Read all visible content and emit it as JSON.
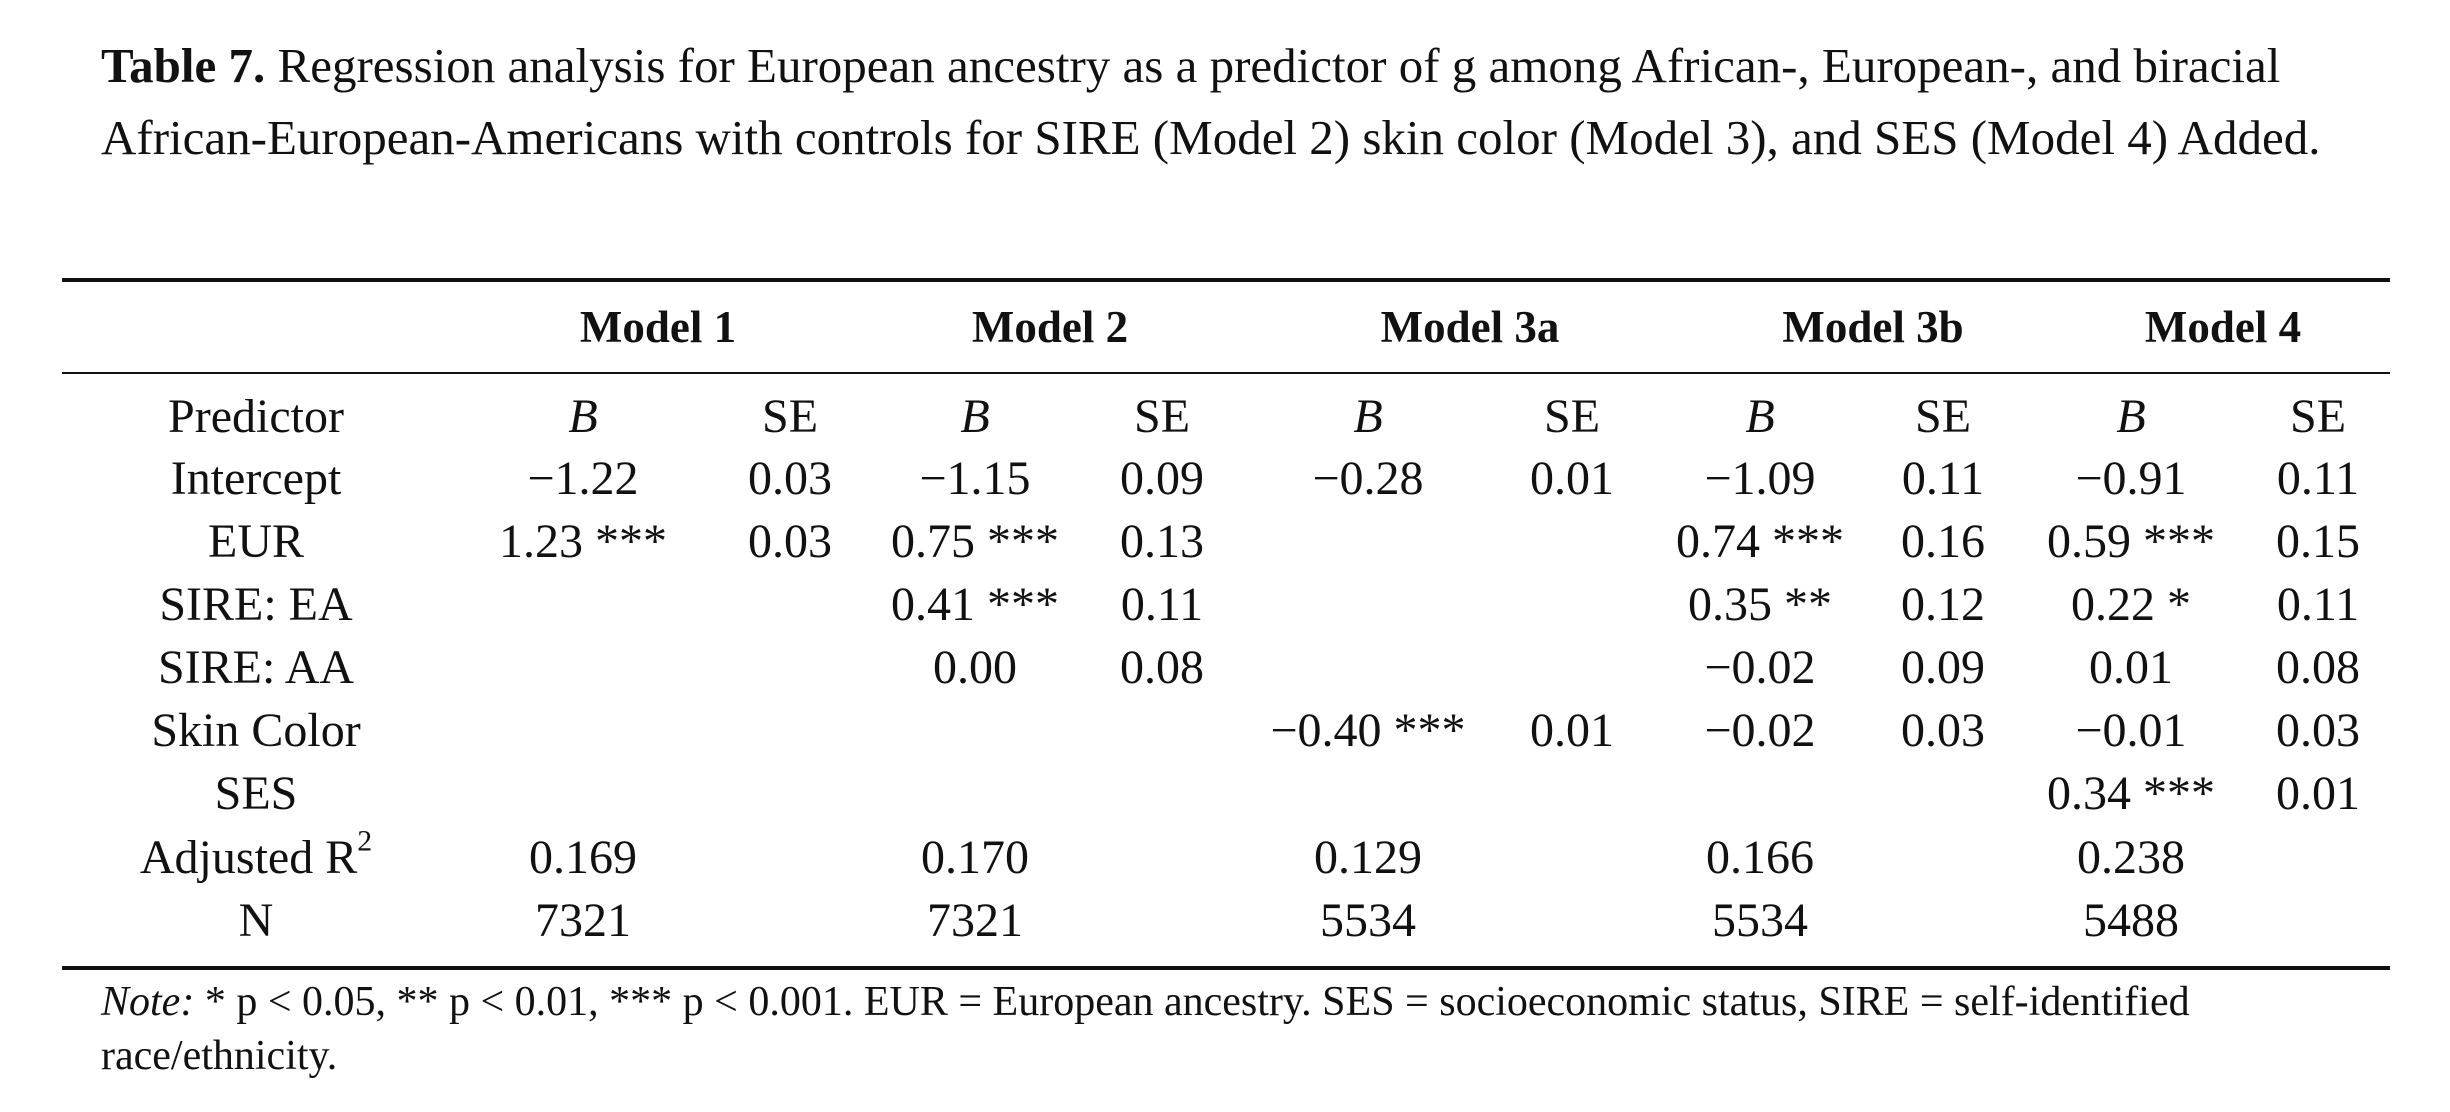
{
  "caption": {
    "label": "Table 7.",
    "text": "Regression analysis for European ancestry as a predictor of g among African-, European-, and biracial African-European-Americans with controls for SIRE (Model 2) skin color (Model 3), and SES (Model 4) Added."
  },
  "models": [
    "Model 1",
    "Model 2",
    "Model 3a",
    "Model 3b",
    "Model 4"
  ],
  "header_row": [
    "Predictor",
    "B",
    "SE",
    "B",
    "SE",
    "B",
    "SE",
    "B",
    "SE",
    "B",
    "SE"
  ],
  "rows": [
    [
      "Intercept",
      "−1.22",
      "0.03",
      "−1.15",
      "0.09",
      "−0.28",
      "0.01",
      "−1.09",
      "0.11",
      "−0.91",
      "0.11"
    ],
    [
      "EUR",
      "1.23 ***",
      "0.03",
      "0.75 ***",
      "0.13",
      "",
      "",
      "0.74 ***",
      "0.16",
      "0.59 ***",
      "0.15"
    ],
    [
      "SIRE: EA",
      "",
      "",
      "0.41 ***",
      "0.11",
      "",
      "",
      "0.35 **",
      "0.12",
      "0.22 *",
      "0.11"
    ],
    [
      "SIRE: AA",
      "",
      "",
      "0.00",
      "0.08",
      "",
      "",
      "−0.02",
      "0.09",
      "0.01",
      "0.08"
    ],
    [
      "Skin Color",
      "",
      "",
      "",
      "",
      "−0.40 ***",
      "0.01",
      "−0.02",
      "0.03",
      "−0.01",
      "0.03"
    ],
    [
      "SES",
      "",
      "",
      "",
      "",
      "",
      "",
      "",
      "",
      "0.34 ***",
      "0.01"
    ],
    [
      "Adjusted R",
      "0.169",
      "",
      "0.170",
      "",
      "0.129",
      "",
      "0.166",
      "",
      "0.238",
      ""
    ],
    [
      "N",
      "7321",
      "",
      "7321",
      "",
      "5534",
      "",
      "5534",
      "",
      "5488",
      ""
    ]
  ],
  "r2_superscript": "2",
  "note": {
    "lead": "Note:",
    "text": "* p < 0.05, ** p < 0.01, *** p < 0.001. EUR = European ancestry. SES = socioeconomic status, SIRE = self-identified race/ethnicity."
  }
}
